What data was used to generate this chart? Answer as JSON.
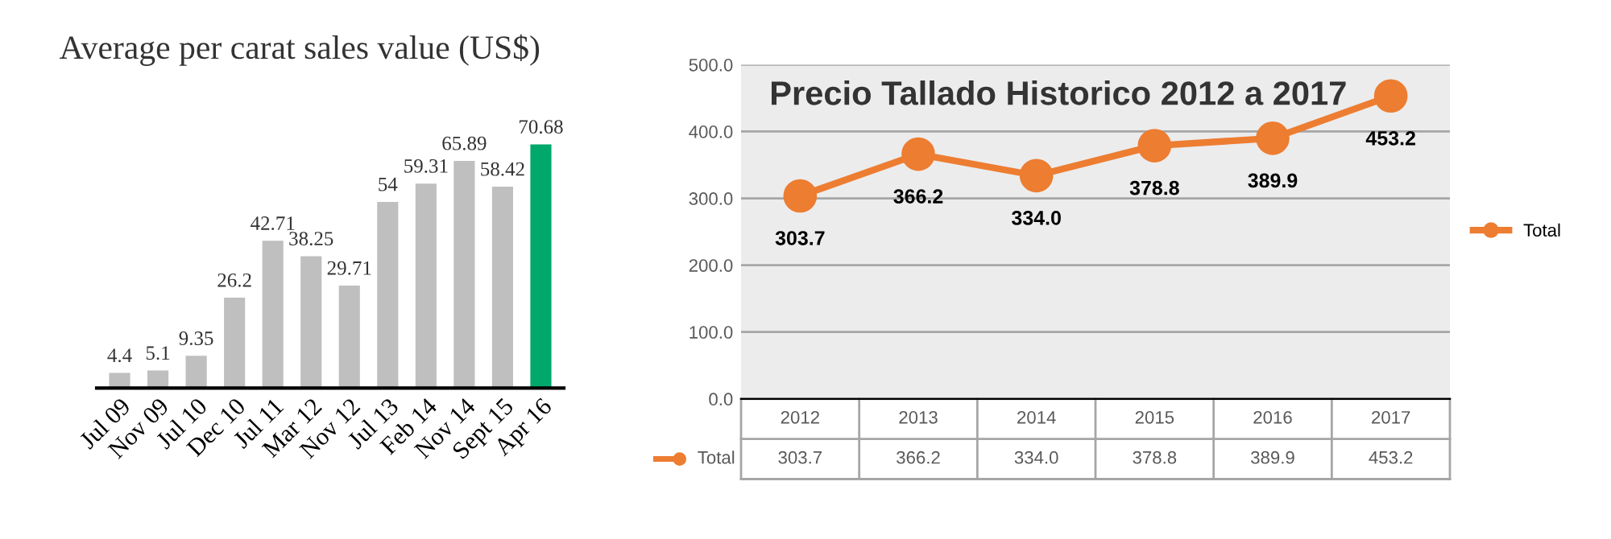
{
  "chart_data": [
    {
      "type": "bar",
      "title": "Average per carat sales value (US$)",
      "categories": [
        "Jul 09",
        "Nov 09",
        "Jul 10",
        "Dec 10",
        "Jul 11",
        "Mar 12",
        "Nov 12",
        "Jul 13",
        "Feb 14",
        "Nov 14",
        "Sept 15",
        "Apr 16"
      ],
      "values": [
        4.4,
        5.1,
        9.35,
        26.2,
        42.71,
        38.25,
        29.71,
        54,
        59.31,
        65.89,
        58.42,
        70.68
      ],
      "colors": [
        "#bfbfbf",
        "#bfbfbf",
        "#bfbfbf",
        "#bfbfbf",
        "#bfbfbf",
        "#bfbfbf",
        "#bfbfbf",
        "#bfbfbf",
        "#bfbfbf",
        "#bfbfbf",
        "#bfbfbf",
        "#00a86b"
      ],
      "data_labels": true,
      "tick_labels": "x"
    },
    {
      "type": "line",
      "title": "Precio Tallado Historico 2012 a 2017",
      "categories": [
        "2012",
        "2013",
        "2014",
        "2015",
        "2016",
        "2017"
      ],
      "series": [
        {
          "name": "Total",
          "color": "#ed7d31",
          "values": [
            303.7,
            366.2,
            334.0,
            378.8,
            389.9,
            453.2
          ],
          "value_labels": [
            "303.7",
            "366.2",
            "334.0",
            "378.8",
            "389.9",
            "453.2"
          ]
        }
      ],
      "ylim": [
        0,
        500
      ],
      "yticks": [
        {
          "value": 0,
          "label": "0.0"
        },
        {
          "value": 100,
          "label": "100.0"
        },
        {
          "value": 200,
          "label": "200.0"
        },
        {
          "value": 300,
          "label": "300.0"
        },
        {
          "value": 400,
          "label": "400.0"
        },
        {
          "value": 500,
          "label": "500.0"
        }
      ],
      "grid": "y",
      "legend": "right",
      "marker": "circle"
    }
  ]
}
